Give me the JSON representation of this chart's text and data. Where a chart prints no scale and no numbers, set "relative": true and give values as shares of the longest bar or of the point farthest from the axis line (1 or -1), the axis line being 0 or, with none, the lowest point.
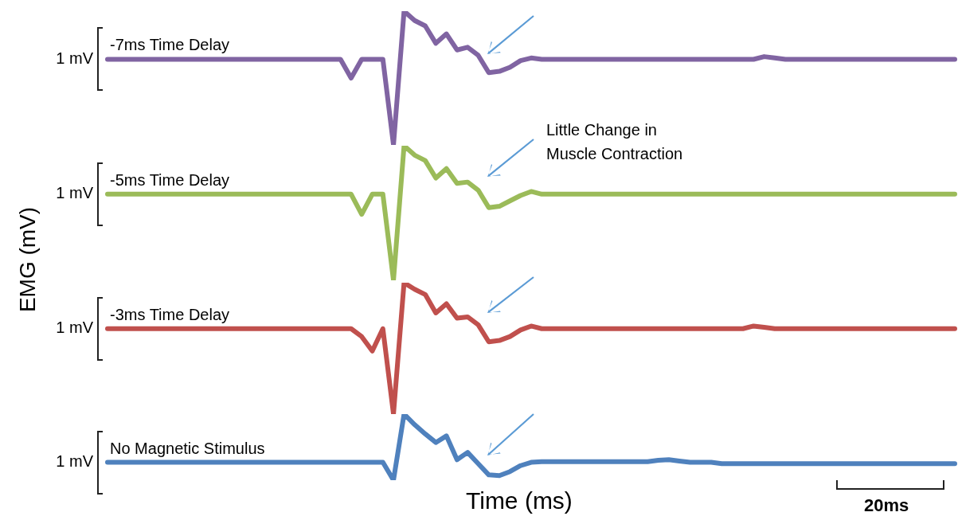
{
  "chart_data": [
    {
      "type": "line",
      "title": "-7ms Time Delay",
      "ylabel": "1 mV",
      "relative": true,
      "categories": [
        null,
        null,
        null,
        null,
        null,
        null,
        null,
        null,
        null,
        null,
        null,
        null,
        null,
        null,
        null,
        null,
        null,
        null,
        null,
        null,
        null,
        null,
        null,
        null,
        null,
        null,
        null,
        null,
        null,
        null,
        null,
        null,
        null,
        null,
        null,
        null,
        null,
        null,
        null,
        null,
        null,
        null,
        null,
        null,
        null,
        null,
        null,
        null,
        null,
        null,
        null,
        null,
        null,
        null,
        null,
        null,
        null,
        null,
        null,
        null,
        null,
        null,
        null,
        null,
        null,
        null,
        null,
        null,
        null,
        null,
        null,
        null,
        null,
        null,
        null,
        null,
        null,
        null,
        null,
        null,
        null
      ],
      "series": [
        {
          "color": "#8064a2",
          "values": [
            0.64,
            0.64,
            0.64,
            0.64,
            0.64,
            0.64,
            0.64,
            0.64,
            0.64,
            0.64,
            0.64,
            0.64,
            0.64,
            0.64,
            0.64,
            0.64,
            0.64,
            0.64,
            0.64,
            0.64,
            0.64,
            0.64,
            0.64,
            0.5,
            0.64,
            0.64,
            0.64,
            0,
            1,
            0.93,
            0.89,
            0.76,
            0.83,
            0.71,
            0.73,
            0.67,
            0.54,
            0.55,
            0.58,
            0.63,
            0.65,
            0.64,
            0.64,
            0.64,
            0.64,
            0.64,
            0.64,
            0.64,
            0.64,
            0.64,
            0.64,
            0.64,
            0.64,
            0.64,
            0.64,
            0.64,
            0.64,
            0.64,
            0.64,
            0.64,
            0.64,
            0.64,
            0.66,
            0.65,
            0.64,
            0.64,
            0.64,
            0.64,
            0.64,
            0.64,
            0.64,
            0.64,
            0.64,
            0.64,
            0.64,
            0.64,
            0.64,
            0.64,
            0.64,
            0.64,
            0.64
          ]
        }
      ]
    },
    {
      "type": "line",
      "title": "-5ms Time Delay",
      "ylabel": "1 mV",
      "relative": true,
      "annotations": [
        "Little Change in Muscle Contraction"
      ],
      "categories": [
        null,
        null,
        null,
        null,
        null,
        null,
        null,
        null,
        null,
        null,
        null,
        null,
        null,
        null,
        null,
        null,
        null,
        null,
        null,
        null,
        null,
        null,
        null,
        null,
        null,
        null,
        null,
        null,
        null,
        null,
        null,
        null,
        null,
        null,
        null,
        null,
        null,
        null,
        null,
        null,
        null,
        null,
        null,
        null,
        null,
        null,
        null,
        null,
        null,
        null,
        null,
        null,
        null,
        null,
        null,
        null,
        null,
        null,
        null,
        null,
        null,
        null,
        null,
        null,
        null,
        null,
        null,
        null,
        null,
        null,
        null,
        null,
        null,
        null,
        null,
        null,
        null,
        null,
        null,
        null,
        null
      ],
      "series": [
        {
          "color": "#9bbb59",
          "values": [
            0.64,
            0.64,
            0.64,
            0.64,
            0.64,
            0.64,
            0.64,
            0.64,
            0.64,
            0.64,
            0.64,
            0.64,
            0.64,
            0.64,
            0.64,
            0.64,
            0.64,
            0.64,
            0.64,
            0.64,
            0.64,
            0.64,
            0.64,
            0.64,
            0.49,
            0.64,
            0.64,
            0,
            1,
            0.93,
            0.89,
            0.76,
            0.83,
            0.72,
            0.73,
            0.67,
            0.54,
            0.55,
            0.59,
            0.63,
            0.66,
            0.64,
            0.64,
            0.64,
            0.64,
            0.64,
            0.64,
            0.64,
            0.64,
            0.64,
            0.64,
            0.64,
            0.64,
            0.64,
            0.64,
            0.64,
            0.64,
            0.64,
            0.64,
            0.64,
            0.64,
            0.64,
            0.64,
            0.64,
            0.64,
            0.64,
            0.64,
            0.64,
            0.64,
            0.64,
            0.64,
            0.64,
            0.64,
            0.64,
            0.64,
            0.64,
            0.64,
            0.64,
            0.64,
            0.64,
            0.64
          ]
        }
      ]
    },
    {
      "type": "line",
      "title": "-3ms Time Delay",
      "ylabel": "1 mV",
      "relative": true,
      "categories": [
        null,
        null,
        null,
        null,
        null,
        null,
        null,
        null,
        null,
        null,
        null,
        null,
        null,
        null,
        null,
        null,
        null,
        null,
        null,
        null,
        null,
        null,
        null,
        null,
        null,
        null,
        null,
        null,
        null,
        null,
        null,
        null,
        null,
        null,
        null,
        null,
        null,
        null,
        null,
        null,
        null,
        null,
        null,
        null,
        null,
        null,
        null,
        null,
        null,
        null,
        null,
        null,
        null,
        null,
        null,
        null,
        null,
        null,
        null,
        null,
        null,
        null,
        null,
        null,
        null,
        null,
        null,
        null,
        null,
        null,
        null,
        null,
        null,
        null,
        null,
        null,
        null,
        null,
        null,
        null,
        null
      ],
      "series": [
        {
          "color": "#c0504d",
          "values": [
            0.65,
            0.65,
            0.65,
            0.65,
            0.65,
            0.65,
            0.65,
            0.65,
            0.65,
            0.65,
            0.65,
            0.65,
            0.65,
            0.65,
            0.65,
            0.65,
            0.65,
            0.65,
            0.65,
            0.65,
            0.65,
            0.65,
            0.65,
            0.65,
            0.59,
            0.48,
            0.65,
            0,
            1,
            0.95,
            0.91,
            0.77,
            0.84,
            0.73,
            0.74,
            0.68,
            0.55,
            0.56,
            0.59,
            0.64,
            0.67,
            0.65,
            0.65,
            0.65,
            0.65,
            0.65,
            0.65,
            0.65,
            0.65,
            0.65,
            0.65,
            0.65,
            0.65,
            0.65,
            0.65,
            0.65,
            0.65,
            0.65,
            0.65,
            0.65,
            0.65,
            0.67,
            0.66,
            0.65,
            0.65,
            0.65,
            0.65,
            0.65,
            0.65,
            0.65,
            0.65,
            0.65,
            0.65,
            0.65,
            0.65,
            0.65,
            0.65,
            0.65,
            0.65,
            0.65,
            0.65
          ]
        }
      ]
    },
    {
      "type": "line",
      "title": "No Magnetic Stimulus",
      "ylabel": "1 mV",
      "xlabel": "Time (ms)",
      "relative": true,
      "annotations": [
        "EMG (mV)",
        "20ms"
      ],
      "categories": [
        null,
        null,
        null,
        null,
        null,
        null,
        null,
        null,
        null,
        null,
        null,
        null,
        null,
        null,
        null,
        null,
        null,
        null,
        null,
        null,
        null,
        null,
        null,
        null,
        null,
        null,
        null,
        null,
        null,
        null,
        null,
        null,
        null,
        null,
        null,
        null,
        null,
        null,
        null,
        null,
        null,
        null,
        null,
        null,
        null,
        null,
        null,
        null,
        null,
        null,
        null,
        null,
        null,
        null,
        null,
        null,
        null,
        null,
        null,
        null,
        null,
        null,
        null,
        null,
        null,
        null,
        null,
        null,
        null,
        null,
        null,
        null,
        null,
        null,
        null,
        null,
        null,
        null,
        null,
        null,
        null
      ],
      "series": [
        {
          "color": "#4f81bd",
          "values": [
            0.27,
            0.27,
            0.27,
            0.27,
            0.27,
            0.27,
            0.27,
            0.27,
            0.27,
            0.27,
            0.27,
            0.27,
            0.27,
            0.27,
            0.27,
            0.27,
            0.27,
            0.27,
            0.27,
            0.27,
            0.27,
            0.27,
            0.27,
            0.27,
            0.27,
            0.27,
            0.27,
            0,
            1,
            0.84,
            0.7,
            0.57,
            0.67,
            0.31,
            0.42,
            0.25,
            0.08,
            0.07,
            0.13,
            0.22,
            0.27,
            0.28,
            0.28,
            0.28,
            0.28,
            0.28,
            0.28,
            0.28,
            0.28,
            0.28,
            0.28,
            0.28,
            0.3,
            0.31,
            0.29,
            0.27,
            0.27,
            0.27,
            0.25,
            0.25,
            0.25,
            0.25,
            0.25,
            0.25,
            0.25,
            0.25,
            0.25,
            0.25,
            0.25,
            0.25,
            0.25,
            0.25,
            0.25,
            0.25,
            0.25,
            0.25,
            0.25,
            0.25,
            0.25,
            0.25,
            0.25
          ]
        }
      ]
    }
  ]
}
